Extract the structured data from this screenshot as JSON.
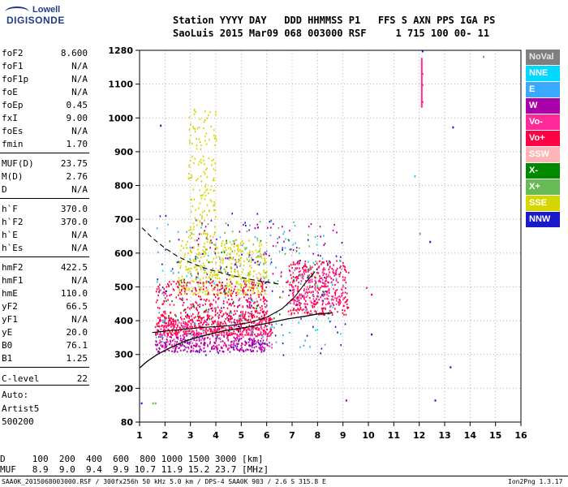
{
  "logo": {
    "top": "Lowell",
    "main": "DIGISONDE"
  },
  "header": {
    "line1": "Station YYYY DAY   DDD HHMMSS P1   FFS S AXN PPS IGA PS",
    "line2": "SaoLuis 2015 Mar09 068 003000 RSF     1 715 100 00- 11"
  },
  "params": [
    {
      "name": "foF2",
      "value": "8.600"
    },
    {
      "name": "foF1",
      "value": "N/A"
    },
    {
      "name": "foF1p",
      "value": "N/A"
    },
    {
      "name": "foE",
      "value": "N/A"
    },
    {
      "name": "foEp",
      "value": "0.45"
    },
    {
      "name": "fxI",
      "value": "9.00"
    },
    {
      "name": "foEs",
      "value": "N/A"
    },
    {
      "name": "fmin",
      "value": "1.70"
    },
    {
      "name": "MUF(D)",
      "value": "23.75"
    },
    {
      "name": "M(D)",
      "value": "2.76"
    },
    {
      "name": "D",
      "value": "N/A"
    },
    {
      "name": "h`F",
      "value": "370.0"
    },
    {
      "name": "h`F2",
      "value": "370.0"
    },
    {
      "name": "h`E",
      "value": "N/A"
    },
    {
      "name": "h`Es",
      "value": "N/A"
    },
    {
      "name": "hmF2",
      "value": "422.5"
    },
    {
      "name": "hmF1",
      "value": "N/A"
    },
    {
      "name": "hmE",
      "value": "110.0"
    },
    {
      "name": "yF2",
      "value": "66.5"
    },
    {
      "name": "yF1",
      "value": "N/A"
    },
    {
      "name": "yE",
      "value": "20.0"
    },
    {
      "name": "B0",
      "value": "76.1"
    },
    {
      "name": "B1",
      "value": "1.25"
    },
    {
      "name": "C-level",
      "value": "22"
    }
  ],
  "auto": {
    "line1": "Auto:",
    "line2": "Artist5",
    "line3": "500200"
  },
  "legend": [
    {
      "label": "NoVal",
      "bg": "#7f7f7f",
      "fg": "#e8e8e8"
    },
    {
      "label": "NNE",
      "bg": "#00d8ff",
      "fg": "#ffffff"
    },
    {
      "label": "E",
      "bg": "#3ba8ff",
      "fg": "#ffffff"
    },
    {
      "label": "W",
      "bg": "#aa00aa",
      "fg": "#ffffff"
    },
    {
      "label": "Vo-",
      "bg": "#ff2a9a",
      "fg": "#ffffff"
    },
    {
      "label": "Vo+",
      "bg": "#ff0044",
      "fg": "#ffffff"
    },
    {
      "label": "SSW",
      "bg": "#ffb5b5",
      "fg": "#ffffff"
    },
    {
      "label": "X-",
      "bg": "#008800",
      "fg": "#ffffff"
    },
    {
      "label": "X+",
      "bg": "#66bb55",
      "fg": "#ffffff"
    },
    {
      "label": "SSE",
      "bg": "#d6d600",
      "fg": "#ffffff"
    },
    {
      "label": "NNW",
      "bg": "#1a1acc",
      "fg": "#ffffff"
    }
  ],
  "chart_data": {
    "type": "scatter",
    "x_ticks": [
      "1",
      "2",
      "3",
      "4",
      "5",
      "6",
      "7",
      "8",
      "9",
      "10",
      "11",
      "12",
      "13",
      "14",
      "15",
      "16"
    ],
    "y_ticks": [
      "80",
      "200",
      "300",
      "400",
      "500",
      "600",
      "700",
      "800",
      "900",
      "1000",
      "1100",
      "1280"
    ],
    "xlim": [
      1,
      16
    ],
    "ylim": [
      80,
      1280
    ],
    "y_tick_values": [
      80,
      200,
      300,
      400,
      500,
      600,
      700,
      800,
      900,
      1000,
      1100,
      1280
    ],
    "grid": true,
    "clusters": [
      {
        "pol": "SSE",
        "fx": [
          2.5,
          6.0
        ],
        "hy": [
          480,
          640
        ],
        "n": 420
      },
      {
        "pol": "SSE",
        "fx": [
          2.9,
          4.0
        ],
        "hy": [
          640,
          1040
        ],
        "n": 160
      },
      {
        "pol": "Vo+",
        "fx": [
          1.6,
          6.2
        ],
        "hy": [
          360,
          420
        ],
        "n": 520
      },
      {
        "pol": "Vo+",
        "fx": [
          1.6,
          6.0
        ],
        "hy": [
          420,
          520
        ],
        "n": 300
      },
      {
        "pol": "Vo+",
        "fx": [
          6.8,
          9.2
        ],
        "hy": [
          420,
          580
        ],
        "n": 320
      },
      {
        "pol": "Vo-",
        "fx": [
          1.7,
          6.2
        ],
        "hy": [
          320,
          400
        ],
        "n": 220
      },
      {
        "pol": "Vo-",
        "fx": [
          7.0,
          9.0
        ],
        "hy": [
          450,
          560
        ],
        "n": 130
      },
      {
        "pol": "W",
        "fx": [
          1.6,
          6.0
        ],
        "hy": [
          310,
          360
        ],
        "n": 260
      },
      {
        "pol": "W",
        "fx": [
          3.0,
          8.8
        ],
        "hy": [
          440,
          700
        ],
        "n": 120
      },
      {
        "pol": "NNW",
        "fx": [
          1.6,
          9.2
        ],
        "hy": [
          300,
          720
        ],
        "n": 90
      },
      {
        "pol": "E",
        "fx": [
          1.6,
          9.0
        ],
        "hy": [
          320,
          700
        ],
        "n": 80
      },
      {
        "pol": "NNE",
        "fx": [
          1.6,
          9.0
        ],
        "hy": [
          340,
          650
        ],
        "n": 60
      },
      {
        "pol": "X+",
        "fx": [
          3.0,
          8.0
        ],
        "hy": [
          500,
          700
        ],
        "n": 70
      },
      {
        "pol": "X-",
        "fx": [
          2.0,
          8.5
        ],
        "hy": [
          400,
          650
        ],
        "n": 40
      },
      {
        "pol": "SSW",
        "fx": [
          2.0,
          8.0
        ],
        "hy": [
          380,
          600
        ],
        "n": 40
      }
    ],
    "isolated": [
      {
        "pol": "NNW",
        "f": 12.1,
        "h": 1280
      },
      {
        "pol": "Vo-",
        "f": 12.1,
        "h": 1160
      },
      {
        "pol": "Vo-",
        "f": 12.1,
        "h": 1100
      },
      {
        "pol": "Vo-",
        "f": 12.1,
        "h": 1050
      },
      {
        "pol": "X+",
        "f": 14.5,
        "h": 1250
      },
      {
        "pol": "NNW",
        "f": 13.3,
        "h": 975
      },
      {
        "pol": "NNW",
        "f": 12.4,
        "h": 636
      },
      {
        "pol": "NNW",
        "f": 12.6,
        "h": 160
      },
      {
        "pol": "NNW",
        "f": 13.2,
        "h": 265
      },
      {
        "pol": "NNW",
        "f": 10.1,
        "h": 362
      },
      {
        "pol": "W",
        "f": 9.1,
        "h": 160
      },
      {
        "pol": "X+",
        "f": 1.5,
        "h": 150
      },
      {
        "pol": "X+",
        "f": 1.6,
        "h": 150
      },
      {
        "pol": "NNW",
        "f": 1.05,
        "h": 150
      },
      {
        "pol": "NNE",
        "f": 11.8,
        "h": 830
      },
      {
        "pol": "E",
        "f": 12.0,
        "h": 660
      },
      {
        "pol": "Vo-",
        "f": 9.9,
        "h": 500
      },
      {
        "pol": "Vo+",
        "f": 10.1,
        "h": 480
      },
      {
        "pol": "SSW",
        "f": 11.2,
        "h": 465
      },
      {
        "pol": "NNW",
        "f": 1.8,
        "h": 980
      }
    ],
    "profile_solid": {
      "points": [
        [
          1.0,
          260
        ],
        [
          1.3,
          280
        ],
        [
          1.7,
          300
        ],
        [
          2.2,
          320
        ],
        [
          2.8,
          340
        ],
        [
          3.5,
          355
        ],
        [
          4.3,
          370
        ],
        [
          5.2,
          380
        ],
        [
          6.0,
          392
        ],
        [
          6.8,
          405
        ],
        [
          7.5,
          413
        ],
        [
          8.0,
          420
        ],
        [
          8.6,
          423
        ]
      ]
    },
    "profile_solid2": {
      "points": [
        [
          1.5,
          365
        ],
        [
          2.5,
          373
        ],
        [
          3.5,
          380
        ],
        [
          4.5,
          385
        ],
        [
          5.3,
          394
        ],
        [
          6.0,
          410
        ],
        [
          6.6,
          435
        ],
        [
          7.1,
          470
        ],
        [
          7.5,
          510
        ],
        [
          7.9,
          545
        ]
      ]
    },
    "profile_dashed": {
      "points": [
        [
          1.1,
          675
        ],
        [
          1.5,
          645
        ],
        [
          2.0,
          615
        ],
        [
          2.5,
          590
        ],
        [
          3.0,
          572
        ],
        [
          3.5,
          557
        ],
        [
          4.0,
          546
        ],
        [
          4.5,
          536
        ],
        [
          5.0,
          528
        ],
        [
          5.5,
          520
        ],
        [
          6.0,
          514
        ],
        [
          6.5,
          508
        ]
      ]
    }
  },
  "footer": {
    "d_row": "D     100  200  400  600  800 1000 1500 3000 [km]",
    "muf_row": "MUF   8.9  9.0  9.4  9.9 10.7 11.9 15.2 23.7 [MHz]",
    "left_info": "SAA0K_2015068003000.RSF / 300fx256h 50 kHz 5.0 km / DPS-4 SAA0K 903 / 2.6 S 315.8 E",
    "right_info": "Ion2Png 1.3.17"
  }
}
